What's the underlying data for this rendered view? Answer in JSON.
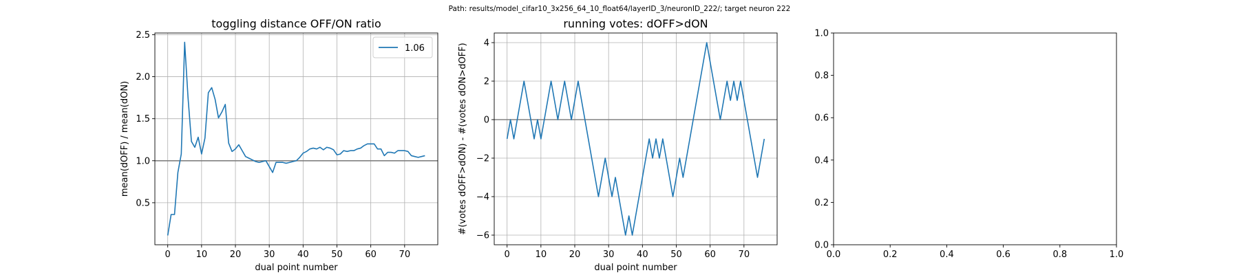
{
  "figure": {
    "suptitle": "Path: results/model_cifar10_3x256_64_10_float64/layerID_3/neuronID_222/; target neuron 222"
  },
  "colors": {
    "series": "#1f77b4",
    "grid": "#b0b0b0",
    "refline": "#808080",
    "axes": "#000000"
  },
  "chart_data": [
    {
      "type": "line",
      "title": "toggling distance OFF/ON ratio",
      "xlabel": "dual point number",
      "ylabel": "mean(dOFF) / mean(dON)",
      "xlim": [
        -3.8,
        79.8
      ],
      "ylim": [
        0.0,
        2.52
      ],
      "xticks": [
        0,
        10,
        20,
        30,
        40,
        50,
        60,
        70
      ],
      "yticks": [
        0.5,
        1.0,
        1.5,
        2.0,
        2.5
      ],
      "ytick_labels": [
        "0.5",
        "1.0",
        "1.5",
        "2.0",
        "2.5"
      ],
      "grid": true,
      "reference_line": 1.0,
      "legend": {
        "placement": "top-right",
        "entries": [
          "1.06"
        ]
      },
      "series": [
        {
          "name": "1.06",
          "x": [
            0,
            1,
            2,
            3,
            4,
            5,
            6,
            7,
            8,
            9,
            10,
            11,
            12,
            13,
            14,
            15,
            16,
            17,
            18,
            19,
            20,
            21,
            22,
            23,
            24,
            25,
            26,
            27,
            28,
            29,
            30,
            31,
            32,
            33,
            34,
            35,
            36,
            37,
            38,
            39,
            40,
            41,
            42,
            43,
            44,
            45,
            46,
            47,
            48,
            49,
            50,
            51,
            52,
            53,
            54,
            55,
            56,
            57,
            58,
            59,
            60,
            61,
            62,
            63,
            64,
            65,
            66,
            67,
            68,
            69,
            70,
            71,
            72,
            73,
            74,
            75,
            76
          ],
          "y": [
            0.11,
            0.36,
            0.36,
            0.86,
            1.08,
            2.41,
            1.75,
            1.23,
            1.16,
            1.28,
            1.08,
            1.27,
            1.81,
            1.87,
            1.73,
            1.51,
            1.58,
            1.67,
            1.21,
            1.11,
            1.14,
            1.19,
            1.12,
            1.05,
            1.03,
            1.01,
            0.99,
            0.98,
            0.99,
            1.0,
            0.93,
            0.86,
            0.98,
            0.98,
            0.98,
            0.97,
            0.98,
            0.99,
            1.0,
            1.04,
            1.09,
            1.11,
            1.14,
            1.15,
            1.14,
            1.16,
            1.13,
            1.16,
            1.15,
            1.13,
            1.07,
            1.08,
            1.12,
            1.11,
            1.12,
            1.12,
            1.14,
            1.15,
            1.18,
            1.2,
            1.2,
            1.2,
            1.14,
            1.14,
            1.06,
            1.1,
            1.1,
            1.09,
            1.12,
            1.12,
            1.12,
            1.11,
            1.06,
            1.05,
            1.04,
            1.05,
            1.06
          ]
        }
      ]
    },
    {
      "type": "line",
      "title": "running votes: dOFF>dON",
      "xlabel": "dual point number",
      "ylabel": "#(votes dOFF>dON) - #(votes dON>dOFF)",
      "xlim": [
        -3.8,
        79.8
      ],
      "ylim": [
        -6.5,
        4.5
      ],
      "xticks": [
        0,
        10,
        20,
        30,
        40,
        50,
        60,
        70
      ],
      "yticks": [
        -6,
        -4,
        -2,
        0,
        2,
        4
      ],
      "ytick_labels": [
        "−6",
        "−4",
        "−2",
        "0",
        "2",
        "4"
      ],
      "grid": true,
      "reference_line": 0,
      "series": [
        {
          "x": [
            0,
            1,
            2,
            3,
            4,
            5,
            6,
            7,
            8,
            9,
            10,
            11,
            12,
            13,
            14,
            15,
            16,
            17,
            18,
            19,
            20,
            21,
            22,
            23,
            24,
            25,
            26,
            27,
            28,
            29,
            30,
            31,
            32,
            33,
            34,
            35,
            36,
            37,
            38,
            39,
            40,
            41,
            42,
            43,
            44,
            45,
            46,
            47,
            48,
            49,
            50,
            51,
            52,
            53,
            54,
            55,
            56,
            57,
            58,
            59,
            60,
            61,
            62,
            63,
            64,
            65,
            66,
            67,
            68,
            69,
            70,
            71,
            72,
            73,
            74,
            75,
            76
          ],
          "y": [
            -1,
            0,
            -1,
            0,
            1,
            2,
            1,
            0,
            -1,
            0,
            -1,
            0,
            1,
            2,
            1,
            0,
            1,
            2,
            1,
            0,
            1,
            2,
            1,
            0,
            -1,
            -2,
            -3,
            -4,
            -3,
            -2,
            -3,
            -4,
            -3,
            -4,
            -5,
            -6,
            -5,
            -6,
            -5,
            -4,
            -3,
            -2,
            -1,
            -2,
            -1,
            -2,
            -1,
            -2,
            -3,
            -4,
            -3,
            -2,
            -3,
            -2,
            -1,
            0,
            1,
            2,
            3,
            4,
            3,
            2,
            1,
            0,
            1,
            2,
            1,
            2,
            1,
            2,
            1,
            0,
            -1,
            -2,
            -3,
            -2,
            -1
          ]
        }
      ]
    },
    {
      "type": "line",
      "title": "",
      "xlabel": "",
      "ylabel": "",
      "xlim": [
        0,
        1
      ],
      "ylim": [
        0,
        1
      ],
      "xticks": [
        0.0,
        0.2,
        0.4,
        0.6,
        0.8,
        1.0
      ],
      "yticks": [
        0.0,
        0.2,
        0.4,
        0.6,
        0.8,
        1.0
      ],
      "xtick_labels": [
        "0.0",
        "0.2",
        "0.4",
        "0.6",
        "0.8",
        "1.0"
      ],
      "ytick_labels": [
        "0.0",
        "0.2",
        "0.4",
        "0.6",
        "0.8",
        "1.0"
      ],
      "grid": false,
      "series": []
    }
  ]
}
